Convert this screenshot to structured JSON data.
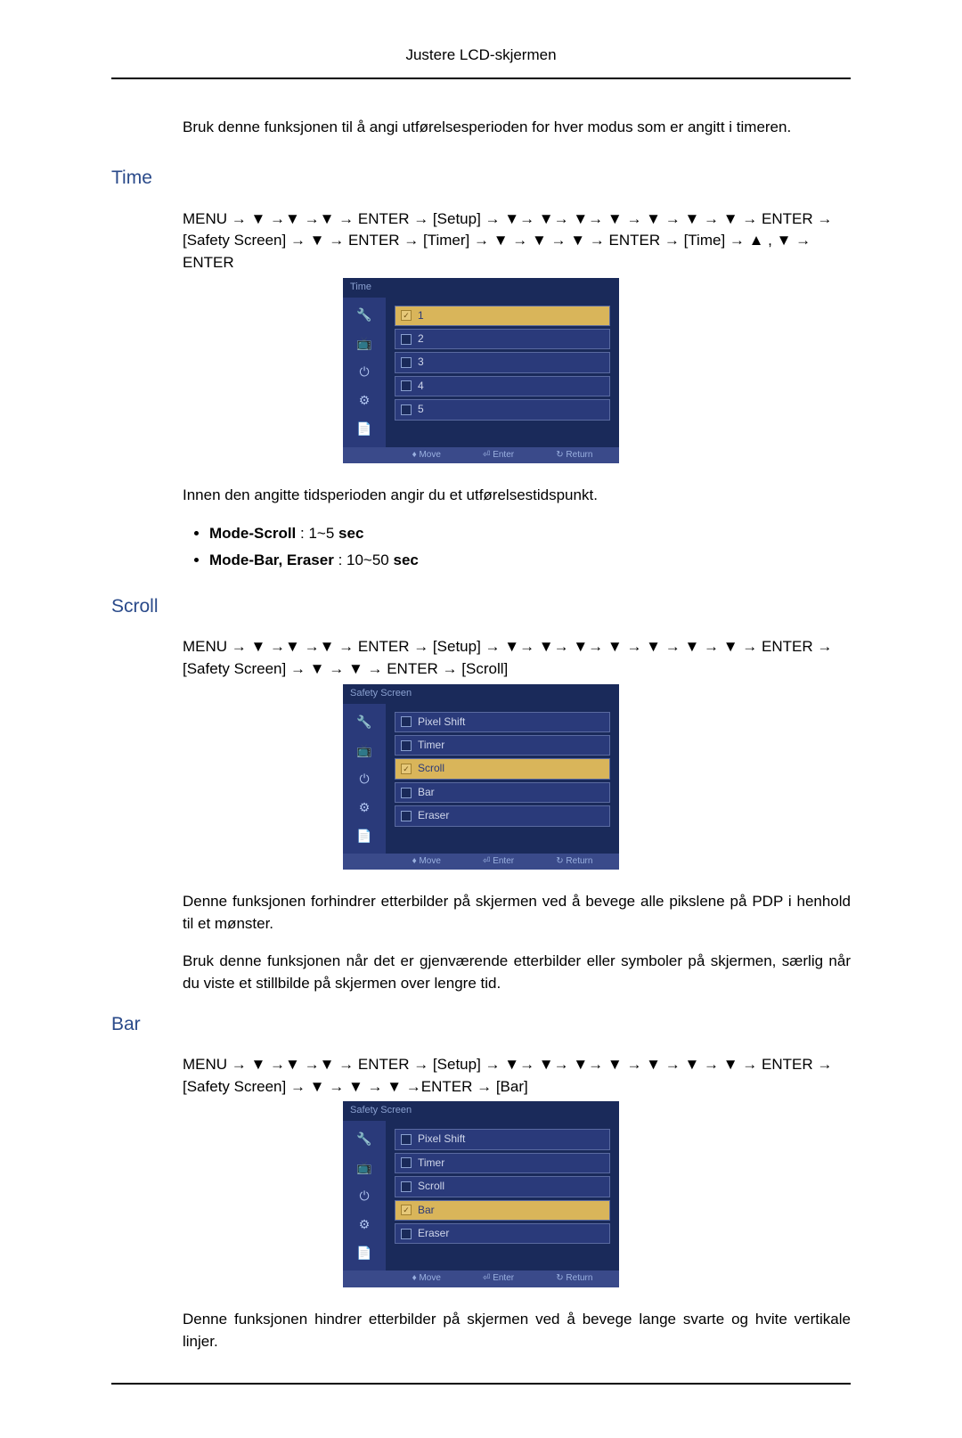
{
  "page_header": "Justere LCD-skjermen",
  "intro": "Bruk denne funksjonen til å angi utførelsesperioden for hver modus som er angitt i timeren.",
  "sections": {
    "time": {
      "title": "Time",
      "nav": "MENU → ▼ →▼ →▼ → ENTER → [Setup] → ▼→ ▼→ ▼→ ▼ → ▼ → ▼ → ▼ → ENTER → [Safety Screen] → ▼ → ENTER → [Timer] → ▼ → ▼ → ▼ → ENTER → [Time] → ▲ , ▼ → ENTER",
      "after": "Innen den angitte tidsperioden angir du et utførelsestidspunkt.",
      "bullets": [
        {
          "b": "Mode-Scroll",
          "rest": " : 1~5 ",
          "b2": "sec"
        },
        {
          "b": "Mode-Bar, Eraser",
          "rest": " : 10~50 ",
          "b2": "sec"
        }
      ]
    },
    "scroll": {
      "title": "Scroll",
      "nav": "MENU → ▼ →▼ →▼ → ENTER → [Setup] → ▼→ ▼→ ▼→ ▼ → ▼ → ▼ → ▼ → ENTER → [Safety Screen] → ▼ → ▼ → ENTER → [Scroll]",
      "after1": "Denne funksjonen forhindrer etterbilder på skjermen ved å bevege alle pikslene på PDP i henhold til et mønster.",
      "after2": "Bruk denne funksjonen når det er gjenværende etterbilder eller symboler på skjermen, særlig når du viste et stillbilde på skjermen over lengre tid."
    },
    "bar": {
      "title": "Bar",
      "nav": "MENU → ▼ →▼ →▼ → ENTER → [Setup] → ▼→ ▼→ ▼→ ▼ → ▼ → ▼ → ▼ → ENTER → [Safety Screen] → ▼ → ▼ → ▼ →ENTER → [Bar]",
      "after": "Denne funksjonen hindrer etterbilder på skjermen ved å bevege lange svarte og hvite vertikale linjer."
    }
  },
  "osd_time": {
    "title": "Time",
    "icons": [
      "🔧",
      "📺",
      "⏻",
      "⚙",
      "📄"
    ],
    "items": [
      {
        "label": "1",
        "selected": true
      },
      {
        "label": "2",
        "selected": false
      },
      {
        "label": "3",
        "selected": false
      },
      {
        "label": "4",
        "selected": false
      },
      {
        "label": "5",
        "selected": false
      }
    ],
    "footer": {
      "move": "♦ Move",
      "enter": "⏎ Enter",
      "ret": "↻ Return"
    }
  },
  "osd_scroll": {
    "title": "Safety Screen",
    "icons": [
      "🔧",
      "📺",
      "⏻",
      "⚙",
      "📄"
    ],
    "items": [
      {
        "label": "Pixel Shift",
        "selected": false
      },
      {
        "label": "Timer",
        "selected": false
      },
      {
        "label": "Scroll",
        "selected": true
      },
      {
        "label": "Bar",
        "selected": false
      },
      {
        "label": "Eraser",
        "selected": false
      }
    ],
    "footer": {
      "move": "♦ Move",
      "enter": "⏎ Enter",
      "ret": "↻ Return"
    }
  },
  "osd_bar": {
    "title": "Safety Screen",
    "icons": [
      "🔧",
      "📺",
      "⏻",
      "⚙",
      "📄"
    ],
    "items": [
      {
        "label": "Pixel Shift",
        "selected": false
      },
      {
        "label": "Timer",
        "selected": false
      },
      {
        "label": "Scroll",
        "selected": false
      },
      {
        "label": "Bar",
        "selected": true
      },
      {
        "label": "Eraser",
        "selected": false
      }
    ],
    "footer": {
      "move": "♦ Move",
      "enter": "⏎ Enter",
      "ret": "↻ Return"
    }
  },
  "colors": {
    "heading": "#2a4a8a",
    "osd_bg": "#1a2a5a",
    "osd_panel": "#2a3a7a",
    "osd_sel": "#d9b55a"
  }
}
